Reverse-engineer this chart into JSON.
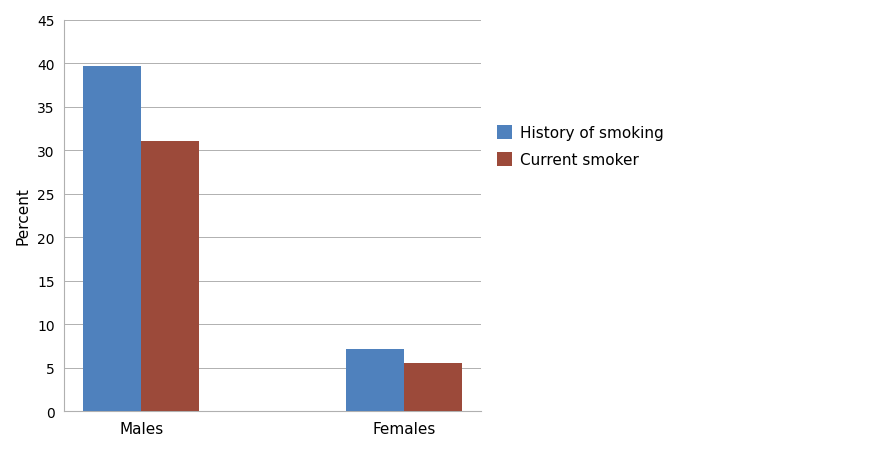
{
  "categories": [
    "Males",
    "Females"
  ],
  "history_of_smoking": [
    39.7,
    7.2
  ],
  "current_smoker": [
    31.0,
    5.5
  ],
  "history_color": "#4F81BD",
  "current_color": "#9C4A3A",
  "ylabel": "Percent",
  "ylim": [
    0,
    45
  ],
  "yticks": [
    0,
    5,
    10,
    15,
    20,
    25,
    30,
    35,
    40,
    45
  ],
  "legend_labels": [
    "History of smoking",
    "Current smoker"
  ],
  "bar_width": 0.22,
  "background_color": "#ffffff",
  "grid_color": "#b0b0b0"
}
